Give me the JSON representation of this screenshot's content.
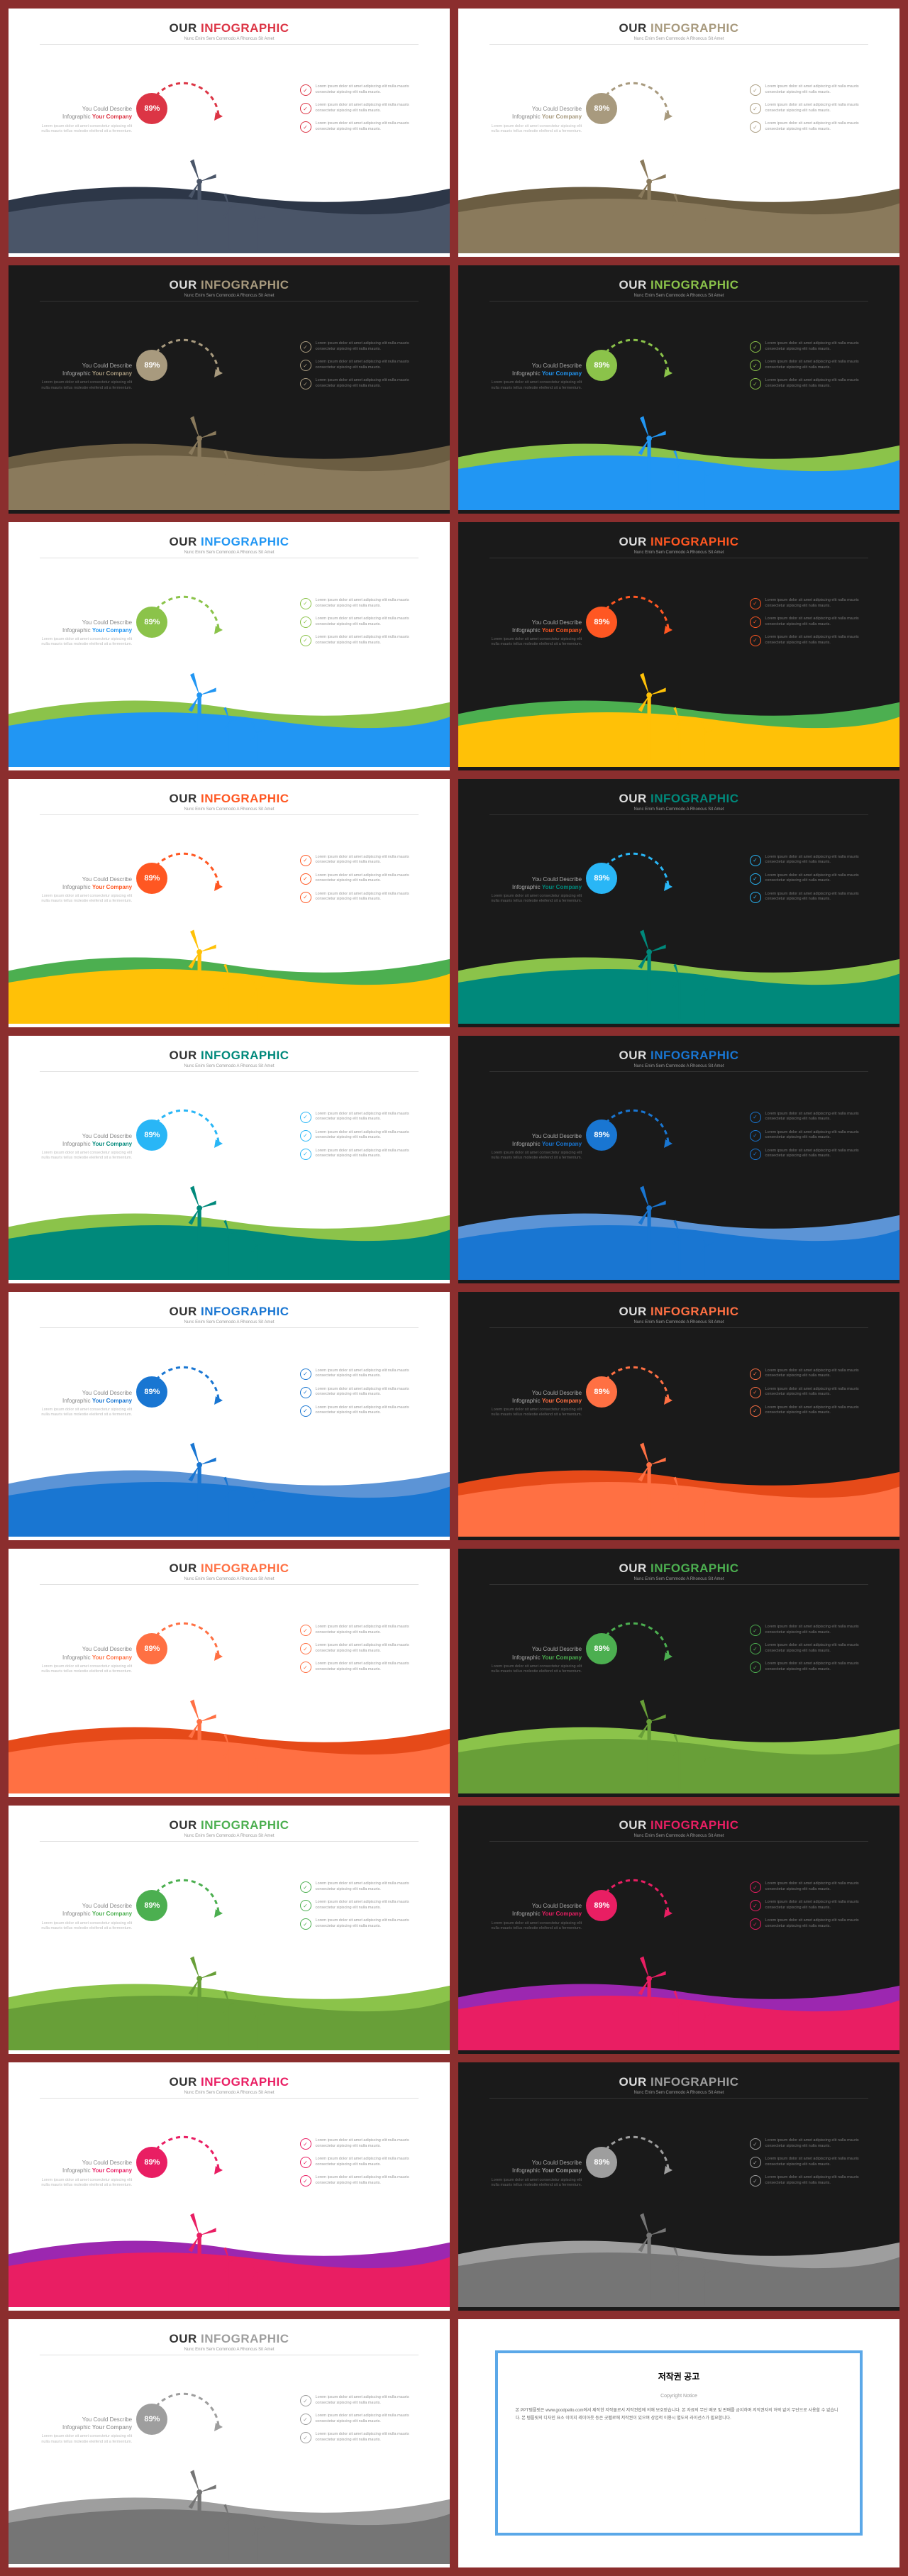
{
  "title_our": "OUR",
  "title_info": "INFOGRAPHIC",
  "subtitle": "Nunc Enim Sem Commodo A Rhoncus Sit Amet",
  "left_line1": "You Could Describe",
  "left_line2_a": "Infographic",
  "left_line2_b": "Your Company",
  "left_desc": "Lorem ipsum dolor sit amet consectetur sipiscing elit nulla mauris tellus molestie eleifend sit a fermentum.",
  "badge_value": "89%",
  "bullet_text": "Lorem ipsum dolor sit amet adipiscing elit nulla mauris consectetur sipiscing elit nulla mauris.",
  "copyright_title": "저작권 공고",
  "copyright_label": "Copyright Notice",
  "copyright_body": "본 PPT템플릿은 www.goodpello.com에서 제작한 저작물로서 저작권법에 의해 보호받습니다. 본 자료의 무단 배포 및 판매를 금지하며 저작권자의 허락 없이 무단으로 사용할 수 없습니다. 본 템플릿의 디자인 요소 이미지 레이아웃 등은 굿펠로에 저작권이 있으며 상업적 이용시 별도의 라이선스가 필요합니다.",
  "slides": [
    {
      "bg": "light",
      "accent": "#dc3545",
      "turbine": "#4a5568",
      "wave1": "#4a5568",
      "wave2": "#2d3748",
      "line2_color": "#dc3545"
    },
    {
      "bg": "light",
      "accent": "#a89a7e",
      "turbine": "#8a7a5c",
      "wave1": "#8a7a5c",
      "wave2": "#6b5d42",
      "line2_color": "#a89a7e"
    },
    {
      "bg": "dark",
      "accent": "#a89a7e",
      "turbine": "#8a7a5c",
      "wave1": "#8a7a5c",
      "wave2": "#6b5d42",
      "line2_color": "#a89a7e"
    },
    {
      "bg": "dark",
      "accent": "#8bc34a",
      "turbine": "#2196f3",
      "wave1": "#2196f3",
      "wave2": "#8bc34a",
      "line2_color": "#2196f3"
    },
    {
      "bg": "light",
      "accent": "#8bc34a",
      "turbine": "#2196f3",
      "wave1": "#2196f3",
      "wave2": "#8bc34a",
      "title_accent": "#2196f3",
      "line2_color": "#2196f3"
    },
    {
      "bg": "dark",
      "accent": "#ff5722",
      "turbine": "#ffc107",
      "wave1": "#ffc107",
      "wave2": "#4caf50",
      "line2_color": "#ff5722"
    },
    {
      "bg": "light",
      "accent": "#ff5722",
      "turbine": "#ffc107",
      "wave1": "#ffc107",
      "wave2": "#4caf50",
      "line2_color": "#ff5722"
    },
    {
      "bg": "dark",
      "accent": "#29b6f6",
      "turbine": "#00897b",
      "wave1": "#00897b",
      "wave2": "#8bc34a",
      "title_accent": "#00897b",
      "line2_color": "#00897b"
    },
    {
      "bg": "light",
      "accent": "#29b6f6",
      "turbine": "#00897b",
      "wave1": "#00897b",
      "wave2": "#8bc34a",
      "title_accent": "#00897b",
      "line2_color": "#00897b"
    },
    {
      "bg": "dark",
      "accent": "#1976d2",
      "turbine": "#1976d2",
      "wave1": "#1976d2",
      "wave2": "#5c94d6",
      "line2_color": "#1976d2"
    },
    {
      "bg": "light",
      "accent": "#1976d2",
      "turbine": "#1976d2",
      "wave1": "#1976d2",
      "wave2": "#5c94d6",
      "line2_color": "#1976d2"
    },
    {
      "bg": "dark",
      "accent": "#ff7043",
      "turbine": "#ff7043",
      "wave1": "#ff7043",
      "wave2": "#e64a19",
      "line2_color": "#ff7043"
    },
    {
      "bg": "light",
      "accent": "#ff7043",
      "turbine": "#ff7043",
      "wave1": "#ff7043",
      "wave2": "#e64a19",
      "line2_color": "#ff7043"
    },
    {
      "bg": "dark",
      "accent": "#4caf50",
      "turbine": "#689f38",
      "wave1": "#689f38",
      "wave2": "#8bc34a",
      "line2_color": "#4caf50"
    },
    {
      "bg": "light",
      "accent": "#4caf50",
      "turbine": "#689f38",
      "wave1": "#689f38",
      "wave2": "#8bc34a",
      "line2_color": "#4caf50"
    },
    {
      "bg": "dark",
      "accent": "#e91e63",
      "turbine": "#e91e63",
      "wave1": "#e91e63",
      "wave2": "#9c27b0",
      "line2_color": "#e91e63"
    },
    {
      "bg": "light",
      "accent": "#e91e63",
      "turbine": "#e91e63",
      "wave1": "#e91e63",
      "wave2": "#9c27b0",
      "line2_color": "#e91e63"
    },
    {
      "bg": "dark",
      "accent": "#9e9e9e",
      "turbine": "#757575",
      "wave1": "#757575",
      "wave2": "#9e9e9e",
      "line2_color": "#9e9e9e"
    },
    {
      "bg": "light",
      "accent": "#9e9e9e",
      "turbine": "#757575",
      "wave1": "#757575",
      "wave2": "#9e9e9e",
      "line2_color": "#9e9e9e"
    }
  ]
}
